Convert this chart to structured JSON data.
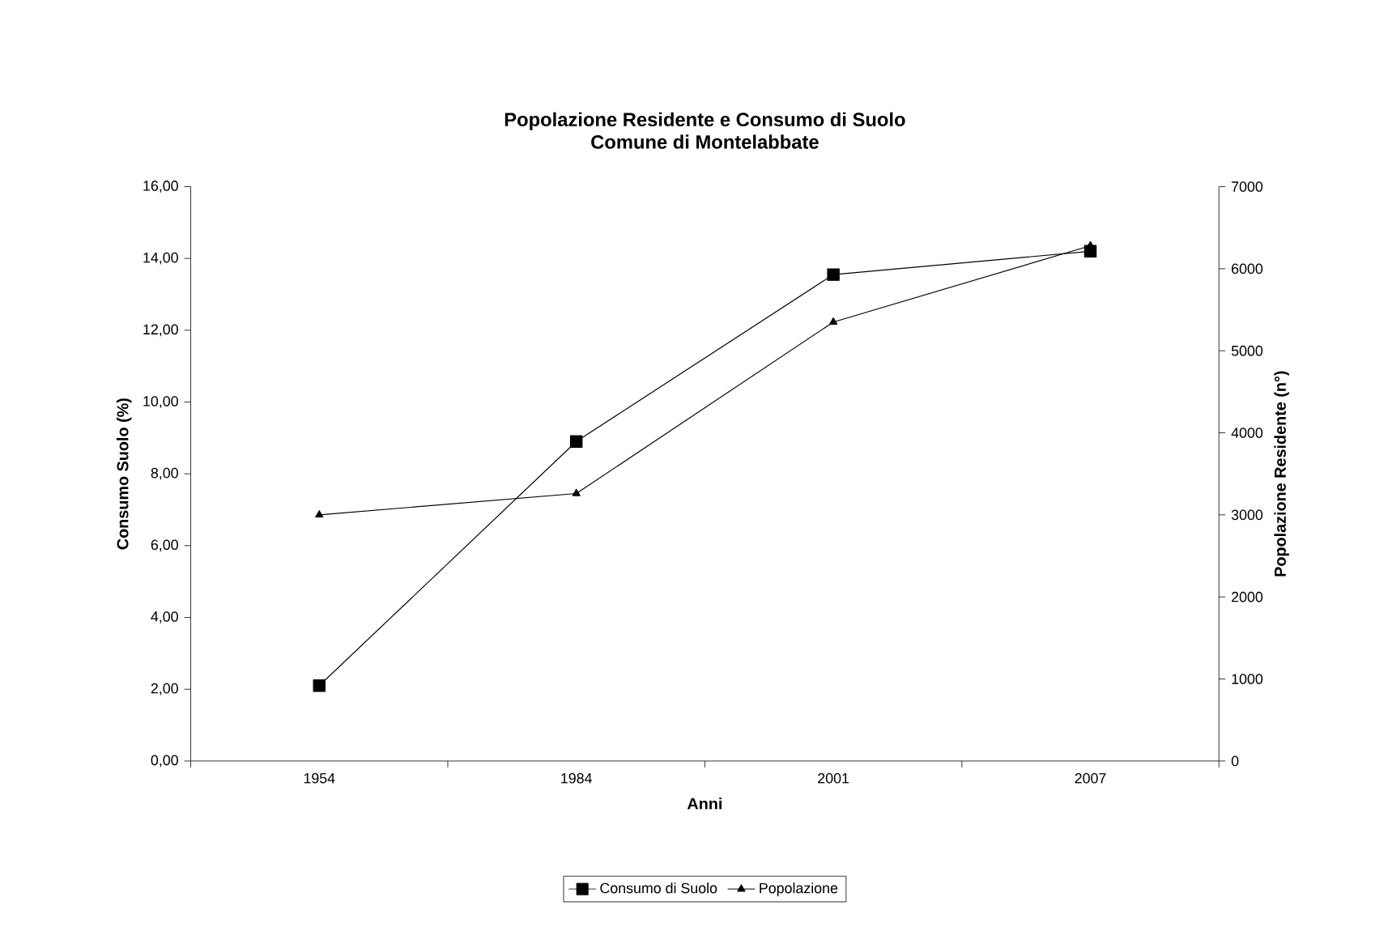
{
  "chart_data": {
    "type": "line",
    "title": "Popolazione Residente e Consumo di Suolo\nComune di Montelabbate",
    "xlabel": "Anni",
    "ylabel": "Consumo Suolo (%)",
    "y2label": "Popolazione Residente (n°)",
    "categories": [
      "1954",
      "1984",
      "2001",
      "2007"
    ],
    "series": [
      {
        "name": "Consumo di Suolo",
        "color": "#000000",
        "marker": "square",
        "values": [
          2.1,
          8.9,
          13.55,
          14.2
        ]
      },
      {
        "name": "Popolazione",
        "color": "#000000",
        "marker": "triangle",
        "axis": "y2",
        "values": [
          3000,
          3260,
          5350,
          6280
        ]
      }
    ],
    "ylim": [
      0,
      16
    ],
    "yticks": [
      {
        "value": 0,
        "label": "0,00"
      },
      {
        "value": 2,
        "label": "2,00"
      },
      {
        "value": 4,
        "label": "4,00"
      },
      {
        "value": 6,
        "label": "6,00"
      },
      {
        "value": 8,
        "label": "8,00"
      },
      {
        "value": 10,
        "label": "10,00"
      },
      {
        "value": 12,
        "label": "12,00"
      },
      {
        "value": 14,
        "label": "14,00"
      },
      {
        "value": 16,
        "label": "16,00"
      }
    ],
    "y2lim": [
      0,
      7000
    ],
    "y2ticks": [
      0,
      1000,
      2000,
      3000,
      4000,
      5000,
      6000,
      7000
    ],
    "grid": false,
    "legend": "bottom",
    "line_style": "solid"
  }
}
